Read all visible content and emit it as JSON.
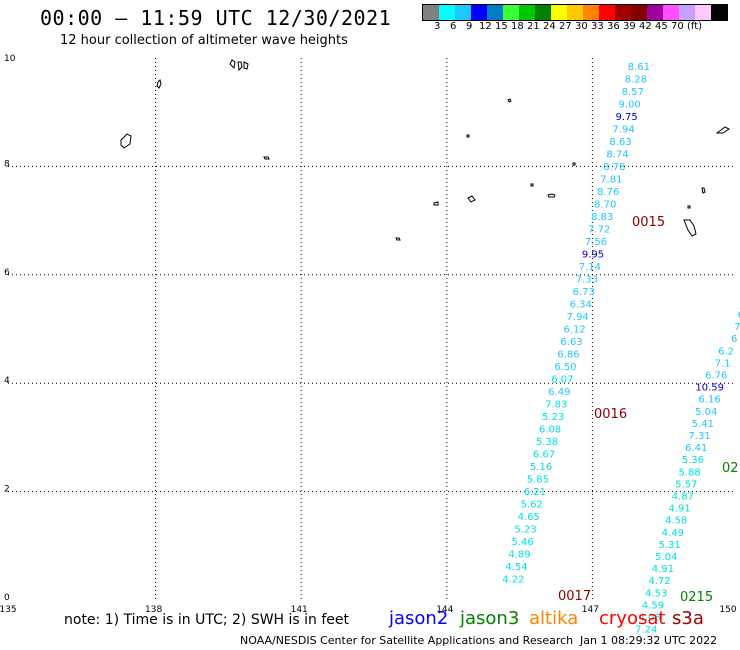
{
  "title": "00:00 – 11:59 UTC 12/30/2021",
  "subtitle": "12 hour collection of altimeter wave heights",
  "legend": {
    "colors": [
      "#808080",
      "#00ffff",
      "#1ec8ff",
      "#0000ff",
      "#007cc8",
      "#3cff3c",
      "#00c800",
      "#008200",
      "#ffff00",
      "#ffc800",
      "#ff8200",
      "#ff0000",
      "#a00000",
      "#820000",
      "#a000a0",
      "#ff50ff",
      "#c8a0ff",
      "#ffc8ff",
      "#000000"
    ],
    "labels": [
      "3",
      "6",
      "9",
      "12",
      "15",
      "18",
      "21",
      "24",
      "27",
      "30",
      "33",
      "36",
      "39",
      "42",
      "45",
      "70",
      "(ft)"
    ]
  },
  "axes": {
    "x_ticks": [
      "135",
      "138",
      "141",
      "144",
      "147",
      "150"
    ],
    "y_ticks": [
      "0",
      "2",
      "4",
      "6",
      "8",
      "10"
    ]
  },
  "passes": [
    {
      "label": "0015",
      "color": "#8b0000"
    },
    {
      "label": "0016",
      "color": "#8b0000"
    },
    {
      "label": "0017",
      "color": "#8b0000"
    },
    {
      "label": "0215",
      "color": "#008200"
    },
    {
      "label": "02",
      "color": "#008200"
    }
  ],
  "track_a": {
    "color": "#1ec8ff",
    "values": [
      "8.61",
      "8.28",
      "8.57",
      "9.00",
      "9.75",
      "7.94",
      "8.63",
      "8.74",
      "8.78",
      "7.81",
      "8.76",
      "8.70",
      "8.83",
      "7.72",
      "7.56",
      "9.95",
      "7.14",
      "7.33",
      "6.73",
      "6.34",
      "7.94",
      "6.12",
      "6.63",
      "6.86",
      "6.50",
      "6.07",
      "6.49",
      "7.83",
      "5.23",
      "6.08",
      "5.38",
      "6.67",
      "5.16",
      "5.85",
      "6.21",
      "5.62",
      "4.65",
      "5.23",
      "5.46",
      "4.89",
      "4.54",
      "4.22"
    ],
    "dark_values": [
      "9.75",
      "9.95"
    ],
    "light_values": [
      "7.14",
      "6.07",
      "7.83",
      "5.23",
      "6.08",
      "5.38",
      "6.67",
      "5.16",
      "5.85",
      "6.21",
      "5.62",
      "4.65",
      "5.23",
      "5.46",
      "4.89",
      "4.54",
      "4.22"
    ]
  },
  "track_b": {
    "color": "#1ec8ff",
    "values": [
      "6",
      "7",
      "6",
      "6.2",
      "7.1",
      "6.76",
      "10.59",
      "6.16",
      "5.04",
      "5.41",
      "7.31",
      "6.41",
      "5.36",
      "5.88",
      "5.57",
      "4.87",
      "4.91",
      "4.58",
      "4.49",
      "5.31",
      "5.04",
      "4.91",
      "4.72",
      "4.53",
      "4.59",
      "4.06",
      "7.24"
    ],
    "dark_values": [
      "10.59"
    ],
    "light_values": [
      "5.36",
      "5.88",
      "5.57",
      "4.87",
      "4.91",
      "4.58",
      "4.49",
      "5.31",
      "5.04",
      "4.91",
      "4.72",
      "4.53",
      "4.59",
      "4.06",
      "7.24"
    ]
  },
  "note": "note: 1) Time is in UTC; 2) SWH is in feet",
  "satellites": [
    {
      "name": "jason2",
      "color": "#0000ff"
    },
    {
      "name": "jason3",
      "color": "#008200"
    },
    {
      "name": "altika",
      "color": "#ff8200"
    },
    {
      "name": "cryosat",
      "color": "#ff0000"
    },
    {
      "name": "s3a",
      "color": "#a00000"
    }
  ],
  "credit": "NOAA/NESDIS Center for Satellite Applications and Research",
  "issued": "Jan  1 08:29:32 UTC 2022"
}
